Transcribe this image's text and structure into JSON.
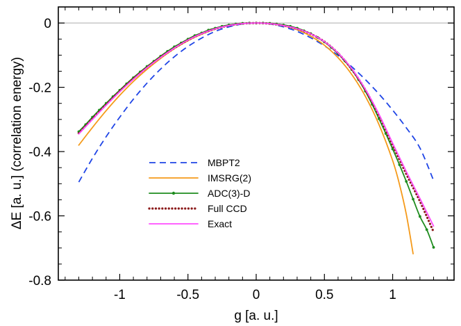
{
  "chart_data": {
    "type": "line",
    "title": "",
    "xlabel": "g [a. u.]",
    "ylabel": "ΔE  [a. u.]  (correlation energy)",
    "xlim": [
      -1.45,
      1.45
    ],
    "ylim": [
      -0.8,
      0.05
    ],
    "xticks": [
      -1,
      -0.5,
      0,
      0.5,
      1
    ],
    "xtick_labels": [
      "-1",
      "-0.5",
      "0",
      "0.5",
      "1"
    ],
    "yticks": [
      0,
      -0.2,
      -0.4,
      -0.6,
      -0.8
    ],
    "ytick_labels": [
      "0",
      "-0.2",
      "-0.4",
      "-0.6",
      "-0.8"
    ],
    "reference_line_y": 0,
    "legend_position": "center-left",
    "series": [
      {
        "name": "MBPT2",
        "color": "#1f45e6",
        "style": "dashed",
        "x": [
          -1.3,
          -1.2,
          -1.1,
          -1.0,
          -0.9,
          -0.8,
          -0.7,
          -0.6,
          -0.5,
          -0.4,
          -0.3,
          -0.2,
          -0.1,
          0.0,
          0.1,
          0.2,
          0.3,
          0.4,
          0.5,
          0.6,
          0.7,
          0.8,
          0.9,
          1.0,
          1.1,
          1.2,
          1.3
        ],
        "values": [
          -0.495,
          -0.421,
          -0.354,
          -0.293,
          -0.237,
          -0.187,
          -0.143,
          -0.105,
          -0.073,
          -0.047,
          -0.026,
          -0.012,
          -0.003,
          0.0,
          -0.003,
          -0.012,
          -0.026,
          -0.046,
          -0.071,
          -0.101,
          -0.136,
          -0.176,
          -0.221,
          -0.271,
          -0.326,
          -0.389,
          -0.49
        ]
      },
      {
        "name": "IMSRG(2)",
        "color": "#f59a1a",
        "style": "solid",
        "x": [
          -1.3,
          -1.2,
          -1.1,
          -1.0,
          -0.9,
          -0.8,
          -0.7,
          -0.6,
          -0.5,
          -0.4,
          -0.3,
          -0.2,
          -0.1,
          0.0,
          0.1,
          0.2,
          0.3,
          0.4,
          0.5,
          0.6,
          0.7,
          0.8,
          0.9,
          1.0,
          1.05,
          1.1,
          1.15
        ],
        "values": [
          -0.38,
          -0.325,
          -0.273,
          -0.225,
          -0.182,
          -0.144,
          -0.11,
          -0.08,
          -0.055,
          -0.035,
          -0.019,
          -0.008,
          -0.002,
          0.0,
          -0.002,
          -0.009,
          -0.021,
          -0.041,
          -0.069,
          -0.108,
          -0.16,
          -0.228,
          -0.316,
          -0.428,
          -0.502,
          -0.595,
          -0.718
        ]
      },
      {
        "name": "ADC(3)-D",
        "color": "#1e8c1e",
        "style": "solid-markers",
        "x": [
          -1.3,
          -1.25,
          -1.2,
          -1.15,
          -1.1,
          -1.05,
          -1.0,
          -0.95,
          -0.9,
          -0.85,
          -0.8,
          -0.75,
          -0.7,
          -0.65,
          -0.6,
          -0.55,
          -0.5,
          -0.45,
          -0.4,
          -0.35,
          -0.3,
          -0.25,
          -0.2,
          -0.15,
          -0.1,
          -0.05,
          0.0,
          0.05,
          0.1,
          0.15,
          0.2,
          0.25,
          0.3,
          0.35,
          0.4,
          0.45,
          0.5,
          0.55,
          0.6,
          0.65,
          0.7,
          0.75,
          0.8,
          0.85,
          0.9,
          0.95,
          1.0,
          1.05,
          1.1,
          1.15,
          1.2,
          1.25,
          1.3
        ],
        "values": [
          -0.338,
          -0.316,
          -0.293,
          -0.271,
          -0.25,
          -0.229,
          -0.209,
          -0.189,
          -0.17,
          -0.152,
          -0.135,
          -0.119,
          -0.103,
          -0.088,
          -0.074,
          -0.062,
          -0.05,
          -0.039,
          -0.031,
          -0.022,
          -0.016,
          -0.01,
          -0.006,
          -0.003,
          -0.001,
          0.0,
          0.0,
          0.0,
          -0.001,
          -0.003,
          -0.006,
          -0.01,
          -0.016,
          -0.024,
          -0.033,
          -0.045,
          -0.059,
          -0.076,
          -0.095,
          -0.118,
          -0.145,
          -0.176,
          -0.212,
          -0.253,
          -0.298,
          -0.344,
          -0.392,
          -0.441,
          -0.493,
          -0.548,
          -0.602,
          -0.643,
          -0.698
        ]
      },
      {
        "name": "Full CCD",
        "color": "#8b1a1a",
        "style": "dotted",
        "x": [
          -1.3,
          -1.2,
          -1.1,
          -1.0,
          -0.9,
          -0.8,
          -0.7,
          -0.6,
          -0.5,
          -0.4,
          -0.3,
          -0.2,
          -0.1,
          0.0,
          0.1,
          0.2,
          0.3,
          0.4,
          0.5,
          0.6,
          0.7,
          0.8,
          0.9,
          1.0,
          1.1,
          1.2,
          1.3
        ],
        "values": [
          -0.343,
          -0.298,
          -0.254,
          -0.212,
          -0.173,
          -0.138,
          -0.106,
          -0.078,
          -0.053,
          -0.033,
          -0.018,
          -0.008,
          -0.002,
          0.0,
          -0.002,
          -0.008,
          -0.018,
          -0.034,
          -0.058,
          -0.094,
          -0.144,
          -0.208,
          -0.288,
          -0.38,
          -0.47,
          -0.555,
          -0.65
        ]
      },
      {
        "name": "Exact",
        "color": "#ff4dff",
        "style": "solid",
        "x": [
          -1.3,
          -1.2,
          -1.1,
          -1.0,
          -0.9,
          -0.8,
          -0.7,
          -0.6,
          -0.5,
          -0.4,
          -0.3,
          -0.2,
          -0.1,
          0.0,
          0.1,
          0.2,
          0.3,
          0.4,
          0.5,
          0.6,
          0.7,
          0.8,
          0.9,
          1.0,
          1.1,
          1.2,
          1.3
        ],
        "values": [
          -0.345,
          -0.3,
          -0.256,
          -0.214,
          -0.175,
          -0.139,
          -0.107,
          -0.078,
          -0.053,
          -0.033,
          -0.018,
          -0.008,
          -0.002,
          0.0,
          -0.002,
          -0.008,
          -0.018,
          -0.034,
          -0.058,
          -0.093,
          -0.142,
          -0.206,
          -0.284,
          -0.374,
          -0.462,
          -0.546,
          -0.632
        ]
      }
    ]
  }
}
